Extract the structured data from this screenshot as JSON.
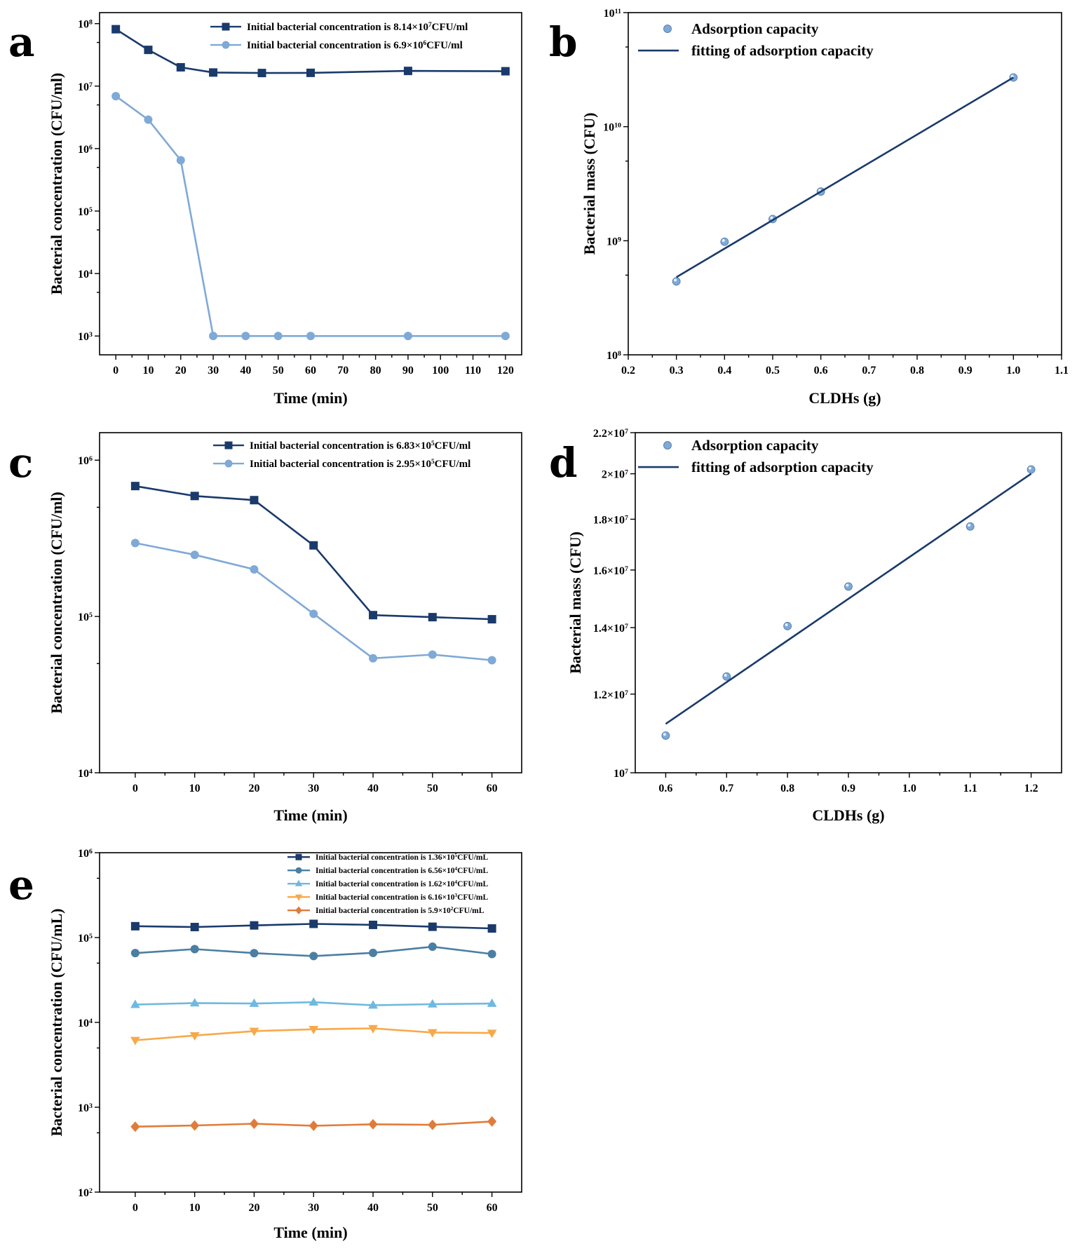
{
  "colors": {
    "dark_navy": "#1a3a6b",
    "light_blue": "#7fa9d6",
    "steel_blue": "#4a7fa3",
    "sky_blue": "#6fb9e0",
    "orange_light": "#f7a94a",
    "orange_dark": "#e07c3a"
  },
  "chart_data": [
    {
      "panel": "a",
      "type": "line",
      "xlabel": "Time (min)",
      "ylabel": "Bacterial concentration (CFU/ml)",
      "xlim": [
        -5,
        125
      ],
      "ylim": [
        500,
        150000000
      ],
      "yscale": "log",
      "xticks": [
        0,
        10,
        20,
        30,
        40,
        50,
        60,
        70,
        80,
        90,
        100,
        110,
        120
      ],
      "xtick_labels": [
        "0",
        "10",
        "20",
        "30",
        "40",
        "50",
        "60",
        "70",
        "80",
        "90",
        "100",
        "110",
        "120"
      ],
      "yticks": [
        1000,
        10000,
        100000,
        1000000,
        10000000,
        100000000
      ],
      "ytick_labels": [
        [
          "10",
          "3"
        ],
        [
          "10",
          "4"
        ],
        [
          "10",
          "5"
        ],
        [
          "10",
          "6"
        ],
        [
          "10",
          "7"
        ],
        [
          "10",
          "8"
        ]
      ],
      "legend_position": "top-right",
      "series": [
        {
          "name": "Initial bacterial concentration is 8.14×10⁷CFU/ml",
          "name_parts": [
            "Initial bacterial concentration is 8.14×10",
            "7",
            "CFU/ml"
          ],
          "color": "#1a3a6b",
          "marker": "square",
          "x": [
            0,
            10,
            20,
            30,
            45,
            60,
            90,
            120
          ],
          "y": [
            81400000,
            38000000,
            20000000,
            16500000,
            16200000,
            16300000,
            17500000,
            17300000
          ]
        },
        {
          "name": "Initial bacterial concentration is 6.9×10⁶CFU/ml",
          "name_parts": [
            "Initial bacterial concentration is 6.9×10",
            "6",
            "CFU/ml"
          ],
          "color": "#7fa9d6",
          "marker": "circle",
          "x": [
            0,
            10,
            20,
            30,
            40,
            50,
            60,
            90,
            120
          ],
          "y": [
            6900000,
            2900000,
            650000,
            1000,
            1000,
            1000,
            1000,
            1000,
            1000
          ]
        }
      ]
    },
    {
      "panel": "b",
      "type": "scatter",
      "xlabel": "CLDHs (g)",
      "ylabel": "Bacterial mass (CFU)",
      "xlim": [
        0.2,
        1.1
      ],
      "ylim": [
        100000000,
        100000000000
      ],
      "yscale": "log",
      "xticks": [
        0.2,
        0.3,
        0.4,
        0.5,
        0.6,
        0.7,
        0.8,
        0.9,
        1.0,
        1.1
      ],
      "xtick_labels": [
        "0.2",
        "0.3",
        "0.4",
        "0.5",
        "0.6",
        "0.7",
        "0.8",
        "0.9",
        "1.0",
        "1.1"
      ],
      "yticks": [
        100000000,
        1000000000,
        10000000000,
        100000000000
      ],
      "ytick_labels": [
        [
          "10",
          "8"
        ],
        [
          "10",
          "9"
        ],
        [
          "10",
          "10"
        ],
        [
          "10",
          "11"
        ]
      ],
      "legend_position": "top-left",
      "series": [
        {
          "name": "Adsorption capacity",
          "color": "#7fa9d6",
          "marker": "circle",
          "x": [
            0.3,
            0.4,
            0.5,
            0.6,
            1.0
          ],
          "y": [
            440000000,
            980000000,
            1550000000,
            2700000000,
            27000000000
          ]
        },
        {
          "name": "fitting of adsorption capacity",
          "color": "#1a3a6b",
          "marker": "none",
          "x": [
            0.3,
            1.0
          ],
          "y": [
            480000000,
            27000000000
          ]
        }
      ]
    },
    {
      "panel": "c",
      "type": "line",
      "xlabel": "Time (min)",
      "ylabel": "Bacterial concentration (CFU/ml)",
      "xlim": [
        -6,
        65
      ],
      "ylim": [
        10000,
        1500000
      ],
      "yscale": "log",
      "xticks": [
        0,
        10,
        20,
        30,
        40,
        50,
        60
      ],
      "xtick_labels": [
        "0",
        "10",
        "20",
        "30",
        "40",
        "50",
        "60"
      ],
      "yticks": [
        10000,
        100000,
        1000000
      ],
      "ytick_labels": [
        [
          "10",
          "4"
        ],
        [
          "10",
          "5"
        ],
        [
          "10",
          "6"
        ]
      ],
      "legend_position": "top-right",
      "series": [
        {
          "name": "Initial bacterial concentration is 6.83×10⁵CFU/ml",
          "name_parts": [
            "Initial bacterial concentration is 6.83×10",
            "5",
            "CFU/ml"
          ],
          "color": "#1a3a6b",
          "marker": "square",
          "x": [
            0,
            10,
            20,
            30,
            40,
            50,
            60
          ],
          "y": [
            683000,
            590000,
            555000,
            285000,
            102000,
            99000,
            96000
          ]
        },
        {
          "name": "Initial bacterial concentration is 2.95×10⁵CFU/ml",
          "name_parts": [
            "Initial bacterial concentration is 2.95×10",
            "5",
            "CFU/ml"
          ],
          "color": "#7fa9d6",
          "marker": "circle",
          "x": [
            0,
            10,
            20,
            30,
            40,
            50,
            60
          ],
          "y": [
            295000,
            248000,
            200000,
            104000,
            54000,
            57000,
            52500
          ]
        }
      ]
    },
    {
      "panel": "d",
      "type": "scatter",
      "xlabel": "CLDHs (g)",
      "ylabel": "Bacterial mass (CFU)",
      "xlim": [
        0.55,
        1.25
      ],
      "ylim": [
        10000000,
        22000000
      ],
      "yscale": "log",
      "xticks": [
        0.6,
        0.7,
        0.8,
        0.9,
        1.0,
        1.1,
        1.2
      ],
      "xtick_labels": [
        "0.6",
        "0.7",
        "0.8",
        "0.9",
        "1.0",
        "1.1",
        "1.2"
      ],
      "yticks": [
        10000000,
        12000000,
        14000000,
        16000000,
        18000000,
        20000000,
        22000000
      ],
      "ytick_labels": [
        [
          "10",
          "7"
        ],
        [
          "1.2×10",
          "7"
        ],
        [
          "1.4×10",
          "7"
        ],
        [
          "1.6×10",
          "7"
        ],
        [
          "1.8×10",
          "7"
        ],
        [
          "2×10",
          "7"
        ],
        [
          "2.2×10",
          "7"
        ]
      ],
      "legend_position": "top-left",
      "series": [
        {
          "name": "Adsorption capacity",
          "color": "#7fa9d6",
          "marker": "circle",
          "x": [
            0.6,
            0.7,
            0.8,
            0.9,
            1.1,
            1.2
          ],
          "y": [
            10900000,
            12500000,
            14050000,
            15400000,
            17700000,
            20200000
          ]
        },
        {
          "name": "fitting of adsorption capacity",
          "color": "#1a3a6b",
          "marker": "none",
          "x": [
            0.6,
            1.2
          ],
          "y": [
            11200000,
            20000000
          ]
        }
      ]
    },
    {
      "panel": "e",
      "type": "line",
      "xlabel": "Time (min)",
      "ylabel": "Bacterial concentration (CFU/mL)",
      "xlim": [
        -6,
        65
      ],
      "ylim": [
        100,
        1000000
      ],
      "yscale": "log",
      "xticks": [
        0,
        10,
        20,
        30,
        40,
        50,
        60
      ],
      "xtick_labels": [
        "0",
        "10",
        "20",
        "30",
        "40",
        "50",
        "60"
      ],
      "yticks": [
        100,
        1000,
        10000,
        100000,
        1000000
      ],
      "ytick_labels": [
        [
          "10",
          "2"
        ],
        [
          "10",
          "3"
        ],
        [
          "10",
          "4"
        ],
        [
          "10",
          "5"
        ],
        [
          "10",
          "6"
        ]
      ],
      "legend_position": "top-right",
      "series": [
        {
          "name": "Initial bacterial concentration is 1.36×10⁵CFU/mL",
          "name_parts": [
            "Initial bacterial concentration is 1.36×10",
            "5",
            "CFU/mL"
          ],
          "color": "#1a3a6b",
          "marker": "square",
          "x": [
            0,
            10,
            20,
            30,
            40,
            50,
            60
          ],
          "y": [
            136000,
            133000,
            139000,
            145000,
            141000,
            134000,
            128000
          ]
        },
        {
          "name": "Initial bacterial concentration is 6.56×10⁴CFU/mL",
          "name_parts": [
            "Initial bacterial concentration is 6.56×10",
            "4",
            "CFU/mL"
          ],
          "color": "#4a7fa3",
          "marker": "circle",
          "x": [
            0,
            10,
            20,
            30,
            40,
            50,
            60
          ],
          "y": [
            65600,
            73000,
            65500,
            60500,
            66000,
            78000,
            64000
          ]
        },
        {
          "name": "Initial bacterial concentration is 1.62×10⁴CFU/mL",
          "name_parts": [
            "Initial bacterial concentration is 1.62×10",
            "4",
            "CFU/mL"
          ],
          "color": "#6fb9e0",
          "marker": "triangle-up",
          "x": [
            0,
            10,
            20,
            30,
            40,
            50,
            60
          ],
          "y": [
            16200,
            16900,
            16700,
            17300,
            15900,
            16400,
            16700
          ]
        },
        {
          "name": "Initial bacterial concentration is 6.16×10³CFU/mL",
          "name_parts": [
            "Initial bacterial concentration is 6.16×10",
            "3",
            "CFU/mL"
          ],
          "color": "#f7a94a",
          "marker": "triangle-down",
          "x": [
            0,
            10,
            20,
            30,
            40,
            50,
            60
          ],
          "y": [
            6160,
            7000,
            7900,
            8300,
            8500,
            7600,
            7500
          ]
        },
        {
          "name": "Initial bacterial concentration is 5.9×10²CFU/mL",
          "name_parts": [
            "Initial bacterial concentration is 5.9×10",
            "2",
            "CFU/mL"
          ],
          "color": "#e07c3a",
          "marker": "diamond",
          "x": [
            0,
            10,
            20,
            30,
            40,
            50,
            60
          ],
          "y": [
            590,
            610,
            640,
            605,
            630,
            620,
            680
          ]
        }
      ]
    }
  ]
}
